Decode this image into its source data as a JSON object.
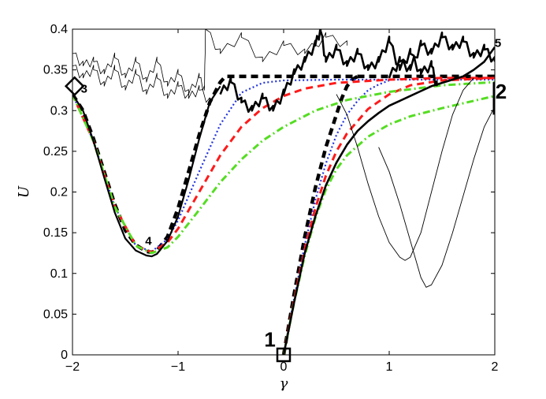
{
  "chart_data": {
    "type": "line",
    "xlabel": "γ",
    "ylabel": "U",
    "xlim": [
      -2,
      2
    ],
    "ylim": [
      0,
      0.4
    ],
    "grid": false,
    "legend": "none",
    "x_ticks": [
      "−2",
      "−1",
      "0",
      "1",
      "2"
    ],
    "y_ticks": [
      "0",
      "0.05",
      "0.1",
      "0.15",
      "0.2",
      "0.25",
      "0.3",
      "0.35",
      "0.4"
    ],
    "annotations": [
      {
        "text": "1",
        "x": -0.13,
        "y": 0.01,
        "size": "large"
      },
      {
        "text": "2",
        "x": 2.06,
        "y": 0.315,
        "size": "large"
      },
      {
        "text": "3",
        "x": -1.89,
        "y": 0.322,
        "size": "small"
      },
      {
        "text": "4",
        "x": -1.28,
        "y": 0.135,
        "size": "small"
      },
      {
        "text": "5",
        "x": 2.03,
        "y": 0.378,
        "size": "small"
      }
    ],
    "markers": [
      {
        "shape": "square",
        "x": 0.0,
        "y": 0.0
      },
      {
        "shape": "diamond",
        "x": -1.98,
        "y": 0.33
      }
    ],
    "colors": {
      "black": "#000000",
      "red": "#ff1a1a",
      "blue": "#2233dd",
      "green": "#55dd22"
    },
    "series": [
      {
        "style": "black-dashed-thick",
        "x": [
          -2.0,
          -1.9,
          -1.8,
          -1.7,
          -1.6,
          -1.5,
          -1.4,
          -1.3,
          -1.25,
          -1.2,
          -1.1,
          -1.0,
          -0.9,
          -0.8,
          -0.7,
          -0.6,
          -0.55,
          -0.3,
          0.0,
          0.5,
          1.0,
          1.5,
          2.0
        ],
        "values": [
          0.32,
          0.3,
          0.265,
          0.225,
          0.185,
          0.153,
          0.135,
          0.127,
          0.126,
          0.128,
          0.145,
          0.18,
          0.225,
          0.27,
          0.31,
          0.335,
          0.342,
          0.342,
          0.342,
          0.342,
          0.342,
          0.342,
          0.342
        ]
      },
      {
        "style": "black-dashed-thick",
        "x": [
          0.0,
          0.1,
          0.2,
          0.3,
          0.4,
          0.5,
          0.55,
          0.6,
          0.65,
          0.7
        ],
        "values": [
          0.0,
          0.075,
          0.145,
          0.205,
          0.255,
          0.295,
          0.315,
          0.33,
          0.338,
          0.342
        ]
      },
      {
        "style": "blue-dotted",
        "x": [
          -2.0,
          -1.8,
          -1.6,
          -1.4,
          -1.25,
          -1.1,
          -1.0,
          -0.8,
          -0.6,
          -0.4,
          -0.2,
          0.0,
          0.5,
          1.0,
          1.5,
          2.0
        ],
        "values": [
          0.32,
          0.262,
          0.182,
          0.134,
          0.127,
          0.142,
          0.165,
          0.225,
          0.283,
          0.322,
          0.334,
          0.337,
          0.338,
          0.338,
          0.338,
          0.338
        ]
      },
      {
        "style": "blue-dotted",
        "x": [
          0.0,
          0.1,
          0.2,
          0.3,
          0.4,
          0.5,
          0.6,
          0.7,
          0.8,
          0.9,
          1.0
        ],
        "values": [
          0.0,
          0.07,
          0.135,
          0.19,
          0.235,
          0.27,
          0.295,
          0.312,
          0.325,
          0.332,
          0.337
        ]
      },
      {
        "style": "red-dashed",
        "x": [
          -2.0,
          -1.8,
          -1.6,
          -1.4,
          -1.25,
          -1.1,
          -1.0,
          -0.8,
          -0.6,
          -0.4,
          -0.2,
          0.0,
          0.2,
          0.5,
          1.0,
          1.5,
          2.0
        ],
        "values": [
          0.32,
          0.262,
          0.182,
          0.134,
          0.126,
          0.138,
          0.155,
          0.2,
          0.245,
          0.28,
          0.303,
          0.318,
          0.327,
          0.334,
          0.338,
          0.34,
          0.34
        ]
      },
      {
        "style": "red-dashed",
        "x": [
          0.0,
          0.1,
          0.2,
          0.3,
          0.4,
          0.5,
          0.6,
          0.8,
          1.0,
          1.2,
          1.5,
          2.0
        ],
        "values": [
          0.0,
          0.068,
          0.13,
          0.18,
          0.22,
          0.25,
          0.272,
          0.302,
          0.32,
          0.331,
          0.337,
          0.34
        ]
      },
      {
        "style": "green-dashdot",
        "x": [
          -2.0,
          -1.8,
          -1.6,
          -1.4,
          -1.25,
          -1.1,
          -1.0,
          -0.8,
          -0.6,
          -0.4,
          -0.2,
          0.0,
          0.3,
          0.6,
          1.0,
          1.5,
          2.0
        ],
        "values": [
          0.32,
          0.262,
          0.182,
          0.134,
          0.125,
          0.132,
          0.145,
          0.178,
          0.212,
          0.24,
          0.263,
          0.28,
          0.3,
          0.313,
          0.323,
          0.331,
          0.335
        ]
      },
      {
        "style": "green-dashdot",
        "x": [
          0.0,
          0.1,
          0.2,
          0.3,
          0.4,
          0.5,
          0.6,
          0.8,
          1.0,
          1.2,
          1.5,
          1.8,
          2.0
        ],
        "values": [
          0.0,
          0.065,
          0.122,
          0.168,
          0.203,
          0.228,
          0.245,
          0.268,
          0.283,
          0.293,
          0.303,
          0.312,
          0.318
        ]
      },
      {
        "style": "black-solid",
        "x": [
          -2.0,
          -1.9,
          -1.8,
          -1.7,
          -1.6,
          -1.5,
          -1.4,
          -1.3,
          -1.25,
          -1.2,
          -1.1,
          -1.0,
          -0.9,
          -0.8,
          -0.7,
          -0.6
        ],
        "values": [
          0.32,
          0.3,
          0.262,
          0.218,
          0.175,
          0.143,
          0.128,
          0.122,
          0.121,
          0.124,
          0.14,
          0.17,
          0.215,
          0.265,
          0.31,
          0.33
        ]
      },
      {
        "style": "black-noisy-thin",
        "x": [
          -2.0,
          -1.9,
          -1.8,
          -1.7,
          -1.6,
          -1.5,
          -1.4,
          -1.3,
          -1.2,
          -1.1,
          -1.0,
          -0.9,
          -0.8,
          -0.75,
          -0.74,
          -0.6,
          -0.4,
          -0.2,
          0.0,
          0.2,
          0.4,
          0.6
        ],
        "values": [
          0.37,
          0.355,
          0.36,
          0.345,
          0.365,
          0.34,
          0.36,
          0.335,
          0.36,
          0.33,
          0.345,
          0.32,
          0.34,
          0.325,
          0.4,
          0.37,
          0.39,
          0.36,
          0.38,
          0.37,
          0.39,
          0.38
        ]
      },
      {
        "style": "black-noisy-thin",
        "x": [
          -2.0,
          -1.9,
          -1.8,
          -1.7,
          -1.6,
          -1.5,
          -1.4,
          -1.3,
          -1.2,
          -1.1,
          -1.0,
          -0.9,
          -0.8,
          -0.7
        ],
        "values": [
          0.355,
          0.34,
          0.35,
          0.33,
          0.35,
          0.325,
          0.345,
          0.32,
          0.34,
          0.315,
          0.33,
          0.315,
          0.325,
          0.31
        ]
      },
      {
        "style": "black-solid-thick",
        "x": [
          0.0,
          0.1,
          0.2,
          0.3,
          0.4,
          0.5,
          0.6,
          0.7,
          0.8,
          0.9,
          1.0,
          1.1,
          1.2,
          1.3,
          1.4,
          1.5,
          1.6,
          1.7,
          1.8,
          1.9,
          2.0
        ],
        "values": [
          0.0,
          0.065,
          0.125,
          0.17,
          0.208,
          0.236,
          0.258,
          0.275,
          0.287,
          0.297,
          0.306,
          0.312,
          0.318,
          0.324,
          0.33,
          0.334,
          0.338,
          0.342,
          0.35,
          0.36,
          0.378
        ]
      },
      {
        "style": "black-noisy-thick",
        "x": [
          -0.6,
          -0.5,
          -0.4,
          -0.3,
          -0.2,
          -0.1,
          0.0,
          0.1,
          0.2,
          0.3,
          0.35,
          0.4,
          0.5,
          0.6,
          0.7,
          0.8,
          0.9,
          1.0,
          1.1,
          1.2,
          1.3,
          1.4,
          1.45
        ],
        "values": [
          0.32,
          0.335,
          0.31,
          0.3,
          0.315,
          0.3,
          0.32,
          0.345,
          0.36,
          0.38,
          0.398,
          0.36,
          0.375,
          0.355,
          0.37,
          0.35,
          0.36,
          0.385,
          0.35,
          0.37,
          0.345,
          0.355,
          0.33
        ]
      },
      {
        "style": "black-noisy-thick",
        "x": [
          1.0,
          1.1,
          1.2,
          1.3,
          1.4,
          1.5,
          1.6,
          1.7,
          1.8,
          1.9,
          2.0
        ],
        "values": [
          0.34,
          0.36,
          0.35,
          0.38,
          0.37,
          0.39,
          0.375,
          0.385,
          0.365,
          0.375,
          0.36
        ]
      },
      {
        "style": "black-solid-thin",
        "x": [
          0.5,
          0.6,
          0.7,
          0.8,
          0.9,
          1.0,
          1.1,
          1.15,
          1.2,
          1.3,
          1.4,
          1.5,
          1.6,
          1.7,
          1.8
        ],
        "values": [
          0.32,
          0.295,
          0.255,
          0.21,
          0.17,
          0.138,
          0.12,
          0.116,
          0.12,
          0.15,
          0.2,
          0.25,
          0.295,
          0.325,
          0.34
        ]
      },
      {
        "style": "black-solid-thin",
        "x": [
          0.9,
          1.0,
          1.1,
          1.2,
          1.3,
          1.35,
          1.4,
          1.5,
          1.6,
          1.7,
          1.8,
          1.9,
          2.0
        ],
        "values": [
          0.255,
          0.225,
          0.185,
          0.14,
          0.095,
          0.083,
          0.086,
          0.11,
          0.15,
          0.195,
          0.24,
          0.28,
          0.305
        ]
      }
    ]
  }
}
